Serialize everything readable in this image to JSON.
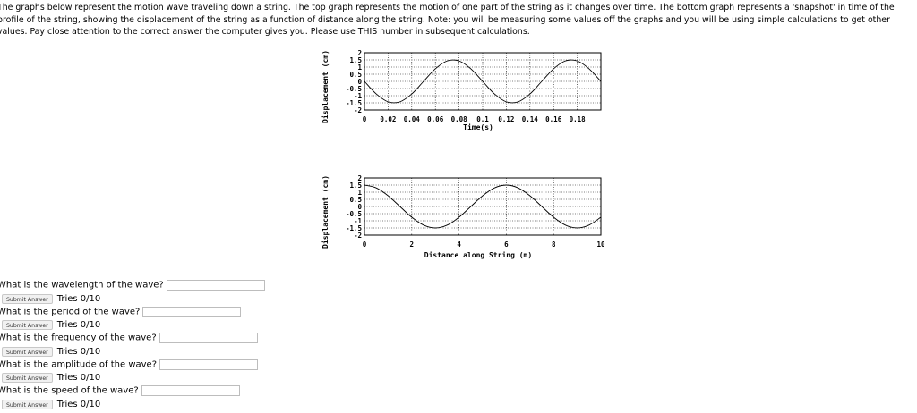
{
  "intro": "The graphs below represent the motion wave traveling down a string. The top graph represents the motion of one part of the string as it changes over time. The bottom graph represents a 'snapshot' in time of the profile of the string, showing the displacement of the string as a function of distance along the string. Note: you will be measuring some values off the graphs and you will be using simple calculations to get other values. Pay close attention to the correct answer the computer gives you. Please use THIS number in subsequent calculations.",
  "chart_data": [
    {
      "type": "line",
      "xlabel": "Time(s)",
      "ylabel": "Displacement (cm)",
      "x_ticks": [
        "0",
        "0.02",
        "0.04",
        "0.06",
        "0.08",
        "0.1",
        "0.12",
        "0.14",
        "0.16",
        "0.18"
      ],
      "y_ticks": [
        "2",
        "1.5",
        "1",
        "0.5",
        "0",
        "-0.5",
        "-1",
        "-1.5",
        "-2"
      ],
      "xlim": [
        0,
        0.2
      ],
      "ylim": [
        -2,
        2
      ],
      "x": [
        0,
        0.01,
        0.02,
        0.03,
        0.04,
        0.05,
        0.06,
        0.07,
        0.08,
        0.09,
        0.1,
        0.11,
        0.12,
        0.13,
        0.14,
        0.15,
        0.16,
        0.17,
        0.18,
        0.19,
        0.2
      ],
      "y": [
        0,
        -0.88,
        -1.43,
        -1.43,
        -0.88,
        0,
        0.88,
        1.43,
        1.43,
        0.88,
        0,
        -0.88,
        -1.43,
        -1.43,
        -0.88,
        0,
        0.88,
        1.43,
        1.43,
        0.88,
        0
      ]
    },
    {
      "type": "line",
      "xlabel": "Distance along String (m)",
      "ylabel": "Displacement (cm)",
      "x_ticks": [
        "0",
        "2",
        "4",
        "6",
        "8",
        "10"
      ],
      "y_ticks": [
        "2",
        "1.5",
        "1",
        "0.5",
        "0",
        "-0.5",
        "-1",
        "-1.5",
        "-2"
      ],
      "xlim": [
        0,
        10
      ],
      "ylim": [
        -2,
        2
      ],
      "x": [
        0,
        0.5,
        1,
        1.5,
        2,
        2.5,
        3,
        3.5,
        4,
        4.5,
        5,
        5.5,
        6,
        6.5,
        7,
        7.5,
        8,
        8.5,
        9,
        9.5,
        10
      ],
      "y": [
        1.5,
        1.3,
        0.75,
        0,
        -0.75,
        -1.3,
        -1.5,
        -1.3,
        -0.75,
        0,
        0.75,
        1.3,
        1.5,
        1.3,
        0.75,
        0,
        -0.75,
        -1.3,
        -1.5,
        -1.3,
        -0.75
      ]
    }
  ],
  "questions": [
    {
      "text": "What is the wavelength of the wave?",
      "button": "Submit Answer",
      "tries": "Tries 0/10"
    },
    {
      "text": "What is the period of the wave?",
      "button": "Submit Answer",
      "tries": "Tries 0/10"
    },
    {
      "text": "What is the frequency of the wave?",
      "button": "Submit Answer",
      "tries": "Tries 0/10"
    },
    {
      "text": "What is the amplitude of the wave?",
      "button": "Submit Answer",
      "tries": "Tries 0/10"
    },
    {
      "text": "What is the speed of the wave?",
      "button": "Submit Answer",
      "tries": "Tries 0/10"
    }
  ]
}
